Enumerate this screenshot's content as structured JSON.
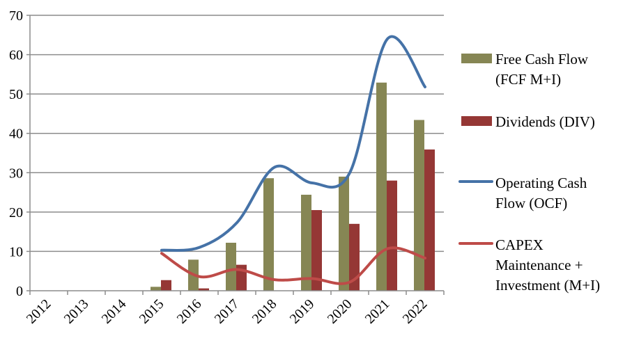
{
  "chart_data": {
    "type": "bar",
    "title": "",
    "xlabel": "",
    "ylabel": "",
    "ylim": [
      0,
      70
    ],
    "yticks": [
      0,
      10,
      20,
      30,
      40,
      50,
      60,
      70
    ],
    "grid": true,
    "legend_position": "right",
    "categories": [
      "2012",
      "2013",
      "2014",
      "2015",
      "2016",
      "2017",
      "2018",
      "2019",
      "2020",
      "2021",
      "2022"
    ],
    "series": [
      {
        "name": "Free Cash Flow (FCF M+I)",
        "legend_lines": [
          "Free Cash Flow",
          "(FCF M+I)"
        ],
        "kind": "bar",
        "color": "#868654",
        "values": [
          null,
          null,
          null,
          1.0,
          7.9,
          12.2,
          28.6,
          24.4,
          29.0,
          52.9,
          43.4
        ]
      },
      {
        "name": "Dividends (DIV)",
        "legend_lines": [
          "Dividends (DIV)"
        ],
        "kind": "bar",
        "color": "#953735",
        "values": [
          null,
          null,
          null,
          2.7,
          0.6,
          6.6,
          null,
          20.5,
          17.0,
          28.0,
          35.9
        ]
      },
      {
        "name": "Operating Cash Flow (OCF)",
        "legend_lines": [
          "Operating Cash",
          "Flow (OCF)"
        ],
        "kind": "line",
        "color": "#4572A7",
        "values": [
          null,
          null,
          null,
          10.3,
          11.0,
          17.3,
          31.4,
          27.4,
          30.0,
          64.0,
          51.8
        ]
      },
      {
        "name": "CAPEX Maintenance + Investment (M+I)",
        "legend_lines": [
          "CAPEX",
          "Maintenance +",
          "Investment (M+I)"
        ],
        "kind": "line",
        "color": "#BE4B48",
        "values": [
          null,
          null,
          null,
          9.5,
          3.6,
          5.4,
          2.8,
          3.1,
          2.2,
          10.7,
          8.3
        ]
      }
    ]
  }
}
